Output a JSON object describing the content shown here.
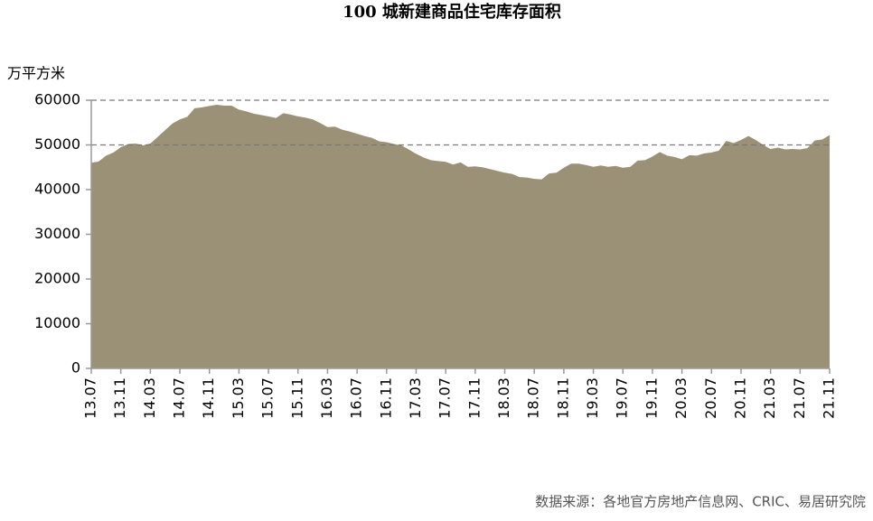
{
  "chart_data": {
    "type": "area",
    "title": "100 城新建商品住宅库存面积",
    "y_label": "万平方米",
    "source": "数据来源：各地官方房地产信息网、CRIC、易居研究院",
    "color": "#9b9176",
    "categories": [
      "13.07",
      null,
      null,
      null,
      "13.11",
      null,
      null,
      null,
      "14.03",
      null,
      null,
      null,
      "14.07",
      null,
      null,
      null,
      "14.11",
      null,
      null,
      null,
      "15.03",
      null,
      null,
      null,
      "15.07",
      null,
      null,
      null,
      "15.11",
      null,
      null,
      null,
      "16.03",
      null,
      null,
      null,
      "16.07",
      null,
      null,
      null,
      "16.11",
      null,
      null,
      null,
      "17.03",
      null,
      null,
      null,
      "17.07",
      null,
      null,
      null,
      "17.11",
      null,
      null,
      null,
      "18.03",
      null,
      null,
      null,
      "18.07",
      null,
      null,
      null,
      "18.11",
      null,
      null,
      null,
      "19.03",
      null,
      null,
      null,
      "19.07",
      null,
      null,
      null,
      "19.11",
      null,
      null,
      null,
      "20.03",
      null,
      null,
      null,
      "20.07",
      null,
      null,
      null,
      "20.11",
      null,
      null,
      null,
      "21.03",
      null,
      null,
      null,
      "21.07",
      null,
      null,
      null,
      "21.11"
    ],
    "values": [
      46000,
      46300,
      47600,
      48300,
      49500,
      50200,
      50300,
      49900,
      50300,
      51800,
      53300,
      54800,
      55700,
      56300,
      58200,
      58400,
      58700,
      59000,
      58800,
      58800,
      57900,
      57500,
      57000,
      56700,
      56400,
      56000,
      57100,
      56800,
      56400,
      56100,
      55700,
      54900,
      54000,
      54100,
      53400,
      53000,
      52500,
      52000,
      51600,
      50800,
      50600,
      50200,
      49900,
      49000,
      48000,
      47200,
      46600,
      46400,
      46200,
      45600,
      46100,
      45100,
      45200,
      45000,
      44600,
      44200,
      43800,
      43500,
      42800,
      42700,
      42400,
      42300,
      43600,
      43800,
      44900,
      45800,
      45800,
      45500,
      45100,
      45400,
      45100,
      45300,
      44900,
      45100,
      46500,
      46600,
      47400,
      48400,
      47600,
      47300,
      46800,
      47700,
      47600,
      48100,
      48300,
      48700,
      50900,
      50400,
      51100,
      52000,
      51100,
      50000,
      49100,
      49400,
      49000,
      49100,
      49000,
      49300,
      51000,
      51200,
      52200
    ],
    "ylim": [
      0,
      60000
    ],
    "yticks": [
      0,
      10000,
      20000,
      30000,
      40000,
      50000,
      60000
    ],
    "grid_values": [
      50000,
      60000
    ]
  }
}
